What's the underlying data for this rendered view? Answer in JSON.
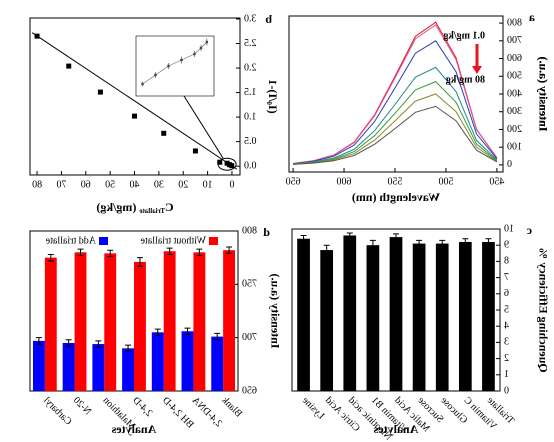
{
  "chart_data": [
    {
      "type": "line",
      "label": "a",
      "x_label": "Wavelength (nm)",
      "y_label": "Intensity (a.u.)",
      "annotations": [
        "0.1 mg/kg",
        "80 mg/kg"
      ],
      "x": [
        450,
        470,
        490,
        510,
        530,
        550,
        570,
        590,
        610,
        630,
        650
      ],
      "series": [
        {
          "color": "#e8141e",
          "values": [
            40,
            201,
            604,
            805,
            725,
            499,
            282,
            129,
            56,
            24,
            8
          ]
        },
        {
          "color": "#d9569a",
          "values": [
            40,
            198,
            593,
            790,
            711,
            490,
            277,
            126,
            55,
            24,
            8
          ]
        },
        {
          "color": "#2b3bb8",
          "values": [
            35,
            175,
            525,
            700,
            630,
            434,
            245,
            112,
            49,
            21,
            7
          ]
        },
        {
          "color": "#1f8a8a",
          "values": [
            28,
            138,
            413,
            550,
            495,
            341,
            193,
            88,
            39,
            17,
            6
          ]
        },
        {
          "color": "#3a9a3a",
          "values": [
            24,
            118,
            353,
            470,
            423,
            291,
            165,
            75,
            33,
            14,
            5
          ]
        },
        {
          "color": "#8a8a2a",
          "values": [
            20,
            100,
            300,
            400,
            360,
            248,
            140,
            64,
            28,
            12,
            4
          ]
        },
        {
          "color": "#555555",
          "values": [
            17,
            83,
            248,
            330,
            297,
            205,
            116,
            53,
            23,
            10,
            3
          ]
        }
      ],
      "xlim": [
        444,
        654
      ],
      "xticks": [
        450,
        500,
        550,
        600,
        650
      ],
      "ylim": [
        -40,
        840
      ],
      "yticks": [
        0,
        100,
        200,
        300,
        400,
        500,
        600,
        700,
        800
      ]
    },
    {
      "type": "scatter",
      "label": "b",
      "x_label": {
        "main": "C",
        "sub": "Triallate",
        "unit": "(mg/kg)"
      },
      "y_label": {
        "pre": "(I",
        "sub": "0",
        "post": "/I)-1"
      },
      "x": [
        0.1,
        1,
        2,
        5,
        15,
        28,
        40,
        54,
        67,
        80
      ],
      "values": [
        0.01,
        0.03,
        0.06,
        0.08,
        0.31,
        0.67,
        1.02,
        1.51,
        2.04,
        2.65
      ],
      "color": "#000000",
      "fit_line": {
        "x": [
          -2,
          82
        ],
        "values": [
          -0.06,
          2.72
        ]
      },
      "inset": {
        "x": [
          0.1,
          1,
          2,
          4,
          6,
          8,
          10
        ],
        "values": [
          0.09,
          0.08,
          0.07,
          0.06,
          0.05,
          0.035,
          0.02
        ],
        "errors": [
          0.006,
          0.005,
          0.005,
          0.006,
          0.005,
          0.005,
          0.004
        ],
        "xlim": [
          -1,
          11
        ],
        "ylim": [
          0,
          0.1
        ]
      },
      "xlim": [
        -3.3,
        82.9
      ],
      "xticks": [
        0,
        10,
        20,
        30,
        40,
        50,
        60,
        70,
        80
      ],
      "ylim": [
        -0.18,
        3.02
      ],
      "yticks": [
        {
          "value": 0,
          "label": "0.0"
        },
        0.5,
        {
          "value": 1,
          "label": "1.0"
        },
        1.5,
        {
          "value": 2,
          "label": "2.0"
        },
        2.5,
        {
          "value": 3,
          "label": "3.0"
        }
      ]
    },
    {
      "type": "bar",
      "label": "c",
      "x_label": "Analytes",
      "y_label": "Quenching Efficiency %",
      "categories": [
        "Triallate",
        "Vitamin C",
        "Glucose",
        "Sucrose",
        "Malic Acid",
        "Vitamin B1",
        "Nicotinic acid",
        "Citric Acid",
        "Lysine"
      ],
      "values": [
        9.2,
        9.2,
        9.1,
        9.1,
        9.5,
        9.0,
        9.6,
        8.7,
        9.4
      ],
      "errors": [
        0.2,
        0.2,
        0.2,
        0.2,
        0.2,
        0.3,
        0.15,
        0.3,
        0.2
      ],
      "color": "#000000",
      "ylim": [
        0,
        10
      ],
      "yticks": [
        0,
        1,
        2,
        3,
        4,
        5,
        6,
        7,
        8,
        9,
        10
      ]
    },
    {
      "type": "grouped_bar",
      "label": "d",
      "x_label": "Analytes",
      "y_label": "Intensity (a.u.)",
      "categories": [
        "Blank",
        "2,4-DNA",
        "BH 2,4-D",
        "2,4-D",
        "Malathion",
        "N-20",
        "Carbaryl"
      ],
      "series": [
        {
          "name": "Without triallate",
          "color": "#ff0000",
          "values": [
            782,
            780,
            781,
            771,
            779,
            780,
            775
          ],
          "errors": [
            3,
            3,
            3,
            4,
            3,
            3,
            3
          ]
        },
        {
          "name": "Add triallate",
          "color": "#0000ff",
          "values": [
            701,
            706,
            705,
            690,
            694,
            695,
            697
          ],
          "errors": [
            3,
            3,
            3,
            3,
            3,
            3,
            3
          ]
        }
      ],
      "ylim": [
        650,
        800
      ],
      "yticks": [
        650,
        700,
        750,
        800
      ]
    }
  ]
}
